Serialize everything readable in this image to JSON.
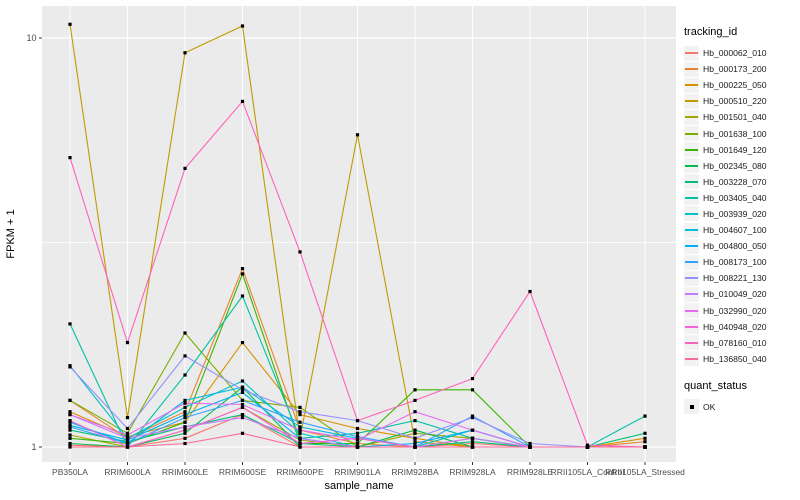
{
  "figure": {
    "background": "#FFFFFF",
    "panel_background": "#EBEBEB",
    "gridline_color": "#FFFFFF",
    "tick_color": "#333333",
    "tick_label_color": "#4D4D4D",
    "point_color": "#000000"
  },
  "chart_data": {
    "type": "line",
    "title": "",
    "xlabel": "sample_name",
    "ylabel": "FPKM + 1",
    "yscale": "log10",
    "ylim": [
      0.95,
      12
    ],
    "yticks": [
      1,
      10
    ],
    "grid": true,
    "legend_position": "right",
    "legend_title": "tracking_id",
    "point_marker": "black-square",
    "categories": [
      "PB350LA",
      "RRIM600LA",
      "RRIM600LE",
      "RRIM600SE",
      "RRIM600PE",
      "RRIM901LA",
      "RRIM928BA",
      "RRIM928LA",
      "RRIM928LE",
      "RRII105LA_Control",
      "RRII105LA_Stressed"
    ],
    "series": [
      {
        "name": "Hb_000062_010",
        "color": "#F8766D",
        "values": [
          1.01,
          1.0,
          1.05,
          1.2,
          1.0,
          1.0,
          1.0,
          1.02,
          1.0,
          1.0,
          1.0
        ]
      },
      {
        "name": "Hb_000173_200",
        "color": "#EA8331",
        "values": [
          1.3,
          1.05,
          1.22,
          2.73,
          1.1,
          1.02,
          1.0,
          1.05,
          1.0,
          1.0,
          1.03
        ]
      },
      {
        "name": "Hb_000225_050",
        "color": "#D89000",
        "values": [
          1.22,
          1.06,
          1.15,
          1.8,
          1.2,
          1.11,
          1.05,
          1.0,
          1.0,
          1.0,
          1.05
        ]
      },
      {
        "name": "Hb_000510_220",
        "color": "#C09B00",
        "values": [
          10.8,
          1.18,
          9.2,
          10.7,
          1.05,
          5.8,
          1.03,
          1.0,
          1.0,
          1.0,
          1.0
        ]
      },
      {
        "name": "Hb_001501_040",
        "color": "#A3A500",
        "values": [
          1.07,
          1.0,
          1.1,
          1.25,
          1.04,
          1.0,
          1.08,
          1.05,
          1.0,
          1.0,
          1.0
        ]
      },
      {
        "name": "Hb_001638_100",
        "color": "#7CAE00",
        "values": [
          1.3,
          1.08,
          1.9,
          1.3,
          1.25,
          1.0,
          1.0,
          1.0,
          1.0,
          1.0,
          1.0
        ]
      },
      {
        "name": "Hb_001649_120",
        "color": "#39B600",
        "values": [
          1.05,
          1.02,
          1.15,
          2.65,
          1.02,
          1.02,
          1.38,
          1.38,
          1.0,
          1.0,
          1.0
        ]
      },
      {
        "name": "Hb_002345_080",
        "color": "#00BB4E",
        "values": [
          1.02,
          1.0,
          1.08,
          1.4,
          1.0,
          1.0,
          1.1,
          1.0,
          1.0,
          1.0,
          1.0
        ]
      },
      {
        "name": "Hb_003228_070",
        "color": "#00BF7D",
        "values": [
          1.1,
          1.03,
          1.12,
          1.2,
          1.02,
          1.0,
          1.0,
          1.03,
          1.0,
          1.0,
          1.08
        ]
      },
      {
        "name": "Hb_003405_040",
        "color": "#00C1A3",
        "values": [
          2.0,
          1.0,
          1.5,
          2.34,
          1.05,
          1.08,
          1.16,
          1.05,
          1.0,
          1.0,
          1.19
        ]
      },
      {
        "name": "Hb_003939_020",
        "color": "#00BFC4",
        "values": [
          1.58,
          1.05,
          1.25,
          1.45,
          1.08,
          1.0,
          1.0,
          1.1,
          1.0,
          1.0,
          1.0
        ]
      },
      {
        "name": "Hb_004607_100",
        "color": "#00BAE0",
        "values": [
          1.15,
          1.02,
          1.3,
          1.4,
          1.12,
          1.05,
          1.0,
          1.0,
          1.0,
          1.0,
          1.0
        ]
      },
      {
        "name": "Hb_004800_050",
        "color": "#00B0F6",
        "values": [
          1.13,
          1.04,
          1.2,
          1.36,
          1.05,
          1.0,
          1.02,
          1.1,
          1.0,
          1.0,
          1.0
        ]
      },
      {
        "name": "Hb_008173_100",
        "color": "#35A2FF",
        "values": [
          1.12,
          1.02,
          1.18,
          1.3,
          1.15,
          1.06,
          1.0,
          1.19,
          1.0,
          1.0,
          1.0
        ]
      },
      {
        "name": "Hb_008221_130",
        "color": "#9590FF",
        "values": [
          1.57,
          1.11,
          1.67,
          1.38,
          1.22,
          1.16,
          1.05,
          1.18,
          1.02,
          1.0,
          1.0
        ]
      },
      {
        "name": "Hb_010049_020",
        "color": "#C77CFF",
        "values": [
          1.2,
          1.05,
          1.12,
          1.18,
          1.05,
          1.0,
          1.0,
          1.05,
          1.0,
          1.0,
          1.0
        ]
      },
      {
        "name": "Hb_032990_020",
        "color": "#E76BF3",
        "values": [
          1.2,
          1.07,
          1.28,
          1.27,
          1.1,
          1.04,
          1.22,
          1.1,
          1.0,
          1.0,
          1.0
        ]
      },
      {
        "name": "Hb_040948_020",
        "color": "#FA62DB",
        "values": [
          1.16,
          1.0,
          1.1,
          1.25,
          1.02,
          1.05,
          1.0,
          1.0,
          1.0,
          1.0,
          1.0
        ]
      },
      {
        "name": "Hb_078160_010",
        "color": "#FF62BC",
        "values": [
          5.1,
          1.8,
          4.8,
          7.0,
          3.0,
          1.16,
          1.3,
          1.47,
          2.4,
          1.01,
          1.0
        ]
      },
      {
        "name": "Hb_136850_040",
        "color": "#FF6A98",
        "values": [
          1.0,
          1.0,
          1.02,
          1.08,
          1.0,
          1.0,
          1.0,
          1.0,
          1.0,
          1.0,
          1.0
        ]
      }
    ],
    "quant_legend": {
      "title": "quant_status",
      "items": [
        {
          "label": "OK",
          "marker": "square",
          "color": "#000000"
        }
      ]
    }
  }
}
